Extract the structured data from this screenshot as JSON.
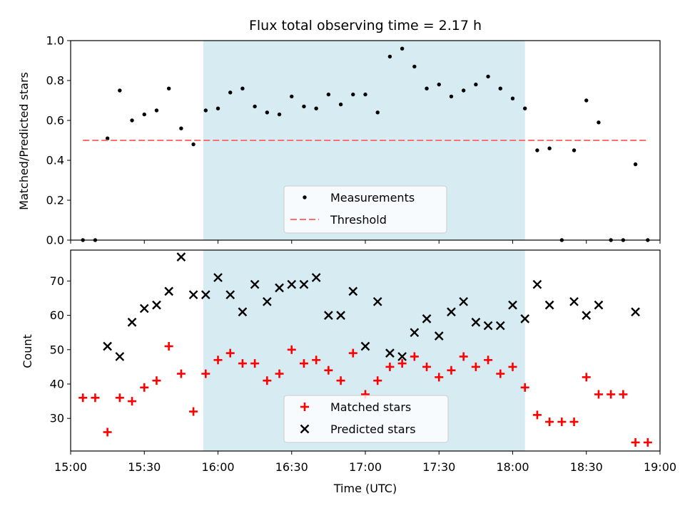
{
  "chart_data": [
    {
      "type": "scatter",
      "title": "Flux total observing time = 2.17 h",
      "ylabel": "Matched/Predicted stars",
      "xlim": [
        "15:00",
        "19:00"
      ],
      "ylim": [
        0.0,
        1.0
      ],
      "yticks": [
        "0.0",
        "0.2",
        "0.4",
        "0.6",
        "0.8",
        "1.0"
      ],
      "shaded_interval": [
        "15:54",
        "18:05"
      ],
      "legend_location": "lower center",
      "series": [
        {
          "name": "Measurements",
          "marker": "dot",
          "color": "#000000",
          "x": [
            "15:05",
            "15:10",
            "15:15",
            "15:20",
            "15:25",
            "15:30",
            "15:35",
            "15:40",
            "15:45",
            "15:50",
            "15:55",
            "16:00",
            "16:05",
            "16:10",
            "16:15",
            "16:20",
            "16:25",
            "16:30",
            "16:35",
            "16:40",
            "16:45",
            "16:50",
            "16:55",
            "17:00",
            "17:05",
            "17:10",
            "17:15",
            "17:20",
            "17:25",
            "17:30",
            "17:35",
            "17:40",
            "17:45",
            "17:50",
            "17:55",
            "18:00",
            "18:05",
            "18:10",
            "18:15",
            "18:20",
            "18:25",
            "18:30",
            "18:35",
            "18:40",
            "18:45",
            "18:50",
            "18:55"
          ],
          "y": [
            0.0,
            0.0,
            0.51,
            0.75,
            0.6,
            0.63,
            0.65,
            0.76,
            0.56,
            0.48,
            0.65,
            0.66,
            0.74,
            0.76,
            0.67,
            0.64,
            0.63,
            0.72,
            0.67,
            0.66,
            0.73,
            0.68,
            0.73,
            0.73,
            0.64,
            0.92,
            0.96,
            0.87,
            0.76,
            0.78,
            0.72,
            0.75,
            0.78,
            0.82,
            0.76,
            0.71,
            0.66,
            0.45,
            0.46,
            0.0,
            0.45,
            0.7,
            0.59,
            0.0,
            0.0,
            0.38,
            0.0
          ]
        },
        {
          "name": "Threshold",
          "marker": "dashed-line",
          "color": "#ff6f6f",
          "x": [
            "15:05",
            "18:55"
          ],
          "y": [
            0.5,
            0.5
          ]
        }
      ]
    },
    {
      "type": "scatter",
      "xlabel": "Time (UTC)",
      "ylabel": "Count",
      "xlim": [
        "15:00",
        "19:00"
      ],
      "ylim": [
        20.5,
        79
      ],
      "xticks": [
        "15:00",
        "15:30",
        "16:00",
        "16:30",
        "17:00",
        "17:30",
        "18:00",
        "18:30",
        "19:00"
      ],
      "yticks": [
        "30",
        "40",
        "50",
        "60",
        "70"
      ],
      "shaded_interval": [
        "15:54",
        "18:05"
      ],
      "legend_location": "lower center",
      "series": [
        {
          "name": "Matched stars",
          "marker": "plus",
          "color": "#ff0000",
          "x": [
            "15:05",
            "15:10",
            "15:15",
            "15:20",
            "15:25",
            "15:30",
            "15:35",
            "15:40",
            "15:45",
            "15:50",
            "15:55",
            "16:00",
            "16:05",
            "16:10",
            "16:15",
            "16:20",
            "16:25",
            "16:30",
            "16:35",
            "16:40",
            "16:45",
            "16:50",
            "16:55",
            "17:00",
            "17:05",
            "17:10",
            "17:15",
            "17:20",
            "17:25",
            "17:30",
            "17:35",
            "17:40",
            "17:45",
            "17:50",
            "17:55",
            "18:00",
            "18:05",
            "18:10",
            "18:15",
            "18:20",
            "18:25",
            "18:30",
            "18:35",
            "18:40",
            "18:45",
            "18:50",
            "18:55"
          ],
          "y": [
            36,
            36,
            26,
            36,
            35,
            39,
            41,
            51,
            43,
            32,
            43,
            47,
            49,
            46,
            46,
            41,
            43,
            50,
            46,
            47,
            44,
            41,
            49,
            37,
            41,
            45,
            46,
            48,
            45,
            42,
            44,
            48,
            45,
            47,
            43,
            45,
            39,
            31,
            29,
            29,
            29,
            42,
            37,
            37,
            37,
            23,
            23
          ]
        },
        {
          "name": "Predicted stars",
          "marker": "x",
          "color": "#000000",
          "x": [
            "15:15",
            "15:20",
            "15:25",
            "15:30",
            "15:35",
            "15:40",
            "15:45",
            "15:50",
            "15:55",
            "16:00",
            "16:05",
            "16:10",
            "16:15",
            "16:20",
            "16:25",
            "16:30",
            "16:35",
            "16:40",
            "16:45",
            "16:50",
            "16:55",
            "17:00",
            "17:05",
            "17:10",
            "17:15",
            "17:20",
            "17:25",
            "17:30",
            "17:35",
            "17:40",
            "17:45",
            "17:50",
            "17:55",
            "18:00",
            "18:05",
            "18:10",
            "18:15",
            "18:25",
            "18:30",
            "18:35",
            "18:50"
          ],
          "y": [
            51,
            48,
            58,
            62,
            63,
            67,
            77,
            66,
            66,
            71,
            66,
            61,
            69,
            64,
            68,
            69,
            69,
            71,
            60,
            60,
            67,
            51,
            64,
            49,
            48,
            55,
            59,
            54,
            61,
            64,
            58,
            57,
            57,
            63,
            59,
            69,
            63,
            64,
            60,
            63,
            61
          ]
        }
      ]
    }
  ]
}
